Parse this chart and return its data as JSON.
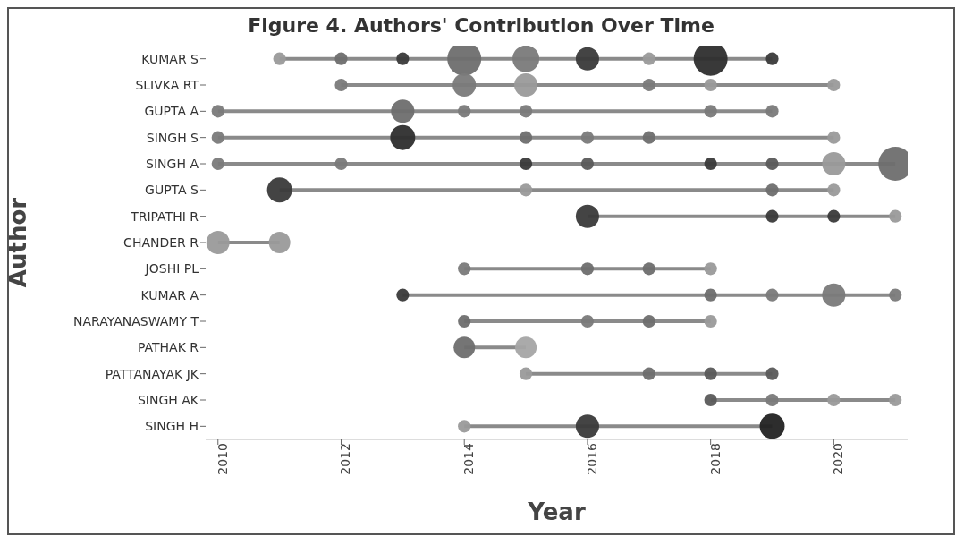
{
  "chart_data": {
    "type": "bubble",
    "title": "Figure 4. Authors' Contribution Over Time",
    "xlabel": "Year",
    "ylabel": "Author",
    "orientation": "horizontal",
    "categories": [
      "KUMAR S",
      "SLIVKA RT",
      "GUPTA A",
      "SINGH S",
      "SINGH A",
      "GUPTA S",
      "TRIPATHI R",
      "CHANDER R",
      "JOSHI PL",
      "KUMAR A",
      "NARAYANASWAMY T",
      "PATHAK R",
      "PATTANAYAK JK",
      "SINGH AK",
      "SINGH H"
    ],
    "xlim": [
      2009.8,
      2021.2
    ],
    "xticks": [
      2010,
      2012,
      2014,
      2016,
      2018,
      2020
    ],
    "legend": false,
    "series": [
      {
        "values": [
          null,
          null,
          2010,
          2010,
          2010,
          null,
          null,
          2010,
          null,
          null,
          null,
          null,
          null,
          null,
          null
        ],
        "sizes": [
          null,
          null,
          0.14,
          0.14,
          0.14,
          null,
          null,
          0.47,
          null,
          null,
          null,
          null,
          null,
          null,
          null
        ],
        "colors": [
          null,
          null,
          "#7a7a7a",
          "#7a7a7a",
          "#7a7a7a",
          null,
          null,
          "#9a9a9a",
          null,
          null,
          null,
          null,
          null,
          null,
          null
        ]
      },
      {
        "values": [
          2011,
          null,
          null,
          null,
          null,
          2011,
          null,
          2011,
          null,
          null,
          null,
          null,
          null,
          null,
          null
        ],
        "sizes": [
          0.14,
          null,
          null,
          null,
          null,
          0.54,
          null,
          0.4,
          null,
          null,
          null,
          null,
          null,
          null,
          null
        ],
        "colors": [
          "#9a9a9a",
          null,
          null,
          null,
          null,
          "#3a3a3a",
          null,
          "#9a9a9a",
          null,
          null,
          null,
          null,
          null,
          null,
          null
        ]
      },
      {
        "values": [
          2012,
          2012,
          null,
          null,
          2012,
          null,
          null,
          null,
          null,
          null,
          null,
          null,
          null,
          null,
          null
        ],
        "sizes": [
          0.14,
          0.14,
          null,
          null,
          0.14,
          null,
          null,
          null,
          null,
          null,
          null,
          null,
          null,
          null,
          null
        ],
        "colors": [
          "#6e6e6e",
          "#7a7a7a",
          null,
          null,
          "#7a7a7a",
          null,
          null,
          null,
          null,
          null,
          null,
          null,
          null,
          null,
          null
        ]
      },
      {
        "values": [
          2013,
          null,
          2013,
          2013,
          null,
          null,
          null,
          null,
          null,
          2013,
          null,
          null,
          null,
          null,
          null
        ],
        "sizes": [
          0.14,
          null,
          0.47,
          0.54,
          null,
          null,
          null,
          null,
          null,
          0.14,
          null,
          null,
          null,
          null,
          null
        ],
        "colors": [
          "#3a3a3a",
          null,
          "#6e6e6e",
          "#2e2e2e",
          null,
          null,
          null,
          null,
          null,
          "#3a3a3a",
          null,
          null,
          null,
          null,
          null
        ]
      },
      {
        "values": [
          2014,
          2014,
          2014,
          null,
          null,
          null,
          null,
          null,
          2014,
          null,
          2014,
          2014,
          null,
          null,
          2014
        ],
        "sizes": [
          1,
          0.47,
          0.14,
          null,
          null,
          null,
          null,
          null,
          0.14,
          null,
          0.14,
          0.4,
          null,
          null,
          0.14
        ],
        "colors": [
          "#6e6e6e",
          "#7a7a7a",
          "#7a7a7a",
          null,
          null,
          null,
          null,
          null,
          "#7a7a7a",
          null,
          "#6e6e6e",
          "#6e6e6e",
          null,
          null,
          "#9a9a9a"
        ]
      },
      {
        "values": [
          2015,
          2015,
          2015,
          2015,
          2015,
          2015,
          null,
          null,
          null,
          null,
          null,
          2015,
          2015,
          null,
          null
        ],
        "sizes": [
          0.62,
          0.47,
          0.14,
          0.14,
          0.14,
          0.14,
          null,
          null,
          null,
          null,
          null,
          0.4,
          0.14,
          null,
          null
        ],
        "colors": [
          "#7a7a7a",
          "#9a9a9a",
          "#7a7a7a",
          "#6e6e6e",
          "#3a3a3a",
          "#9a9a9a",
          null,
          null,
          null,
          null,
          null,
          "#a5a5a5",
          "#9a9a9a",
          null,
          null
        ]
      },
      {
        "values": [
          2016,
          null,
          null,
          2016,
          2016,
          null,
          2016,
          null,
          2016,
          null,
          2016,
          null,
          null,
          null,
          2016
        ],
        "sizes": [
          0.47,
          null,
          null,
          0.14,
          0.14,
          null,
          0.47,
          null,
          0.14,
          null,
          0.14,
          null,
          null,
          null,
          0.47
        ],
        "colors": [
          "#3a3a3a",
          null,
          null,
          "#7a7a7a",
          "#5a5a5a",
          null,
          "#3a3a3a",
          null,
          "#6e6e6e",
          null,
          "#7a7a7a",
          null,
          null,
          null,
          "#3a3a3a"
        ]
      },
      {
        "values": [
          2017,
          2017,
          null,
          2017,
          null,
          null,
          null,
          null,
          2017,
          null,
          2017,
          null,
          2017,
          null,
          null
        ],
        "sizes": [
          0.14,
          0.14,
          null,
          0.14,
          null,
          null,
          null,
          null,
          0.14,
          null,
          0.14,
          null,
          0.14,
          null,
          null
        ],
        "colors": [
          "#9a9a9a",
          "#7a7a7a",
          null,
          "#6e6e6e",
          null,
          null,
          null,
          null,
          "#6e6e6e",
          null,
          "#6e6e6e",
          null,
          "#6e6e6e",
          null,
          null
        ]
      },
      {
        "values": [
          2018,
          2018,
          2018,
          null,
          2018,
          null,
          null,
          null,
          2018,
          2018,
          2018,
          null,
          2018,
          2018,
          null
        ],
        "sizes": [
          1,
          0.14,
          0.14,
          null,
          0.14,
          null,
          null,
          null,
          0.14,
          0.14,
          0.14,
          null,
          0.14,
          0.14,
          null
        ],
        "colors": [
          "#2e2e2e",
          "#9a9a9a",
          "#7a7a7a",
          null,
          "#3a3a3a",
          null,
          null,
          null,
          "#9a9a9a",
          "#6e6e6e",
          "#9a9a9a",
          null,
          "#5a5a5a",
          "#5a5a5a",
          null
        ]
      },
      {
        "values": [
          2019,
          null,
          2019,
          null,
          2019,
          2019,
          2019,
          null,
          null,
          2019,
          null,
          null,
          2019,
          2019,
          2019
        ],
        "sizes": [
          0.14,
          null,
          0.14,
          null,
          0.14,
          0.14,
          0.14,
          null,
          null,
          0.14,
          null,
          null,
          0.14,
          0.14,
          0.54
        ],
        "colors": [
          "#3a3a3a",
          null,
          "#7a7a7a",
          null,
          "#5a5a5a",
          "#6e6e6e",
          "#3a3a3a",
          null,
          null,
          "#7a7a7a",
          null,
          null,
          "#5a5a5a",
          "#7a7a7a",
          "#222222"
        ]
      },
      {
        "values": [
          null,
          2020,
          null,
          2020,
          2020,
          2020,
          2020,
          null,
          null,
          2020,
          null,
          null,
          null,
          2020,
          null
        ],
        "sizes": [
          null,
          0.14,
          null,
          0.14,
          0.47,
          0.14,
          0.14,
          null,
          null,
          0.47,
          null,
          null,
          null,
          0.14,
          null
        ],
        "colors": [
          null,
          "#9a9a9a",
          null,
          "#9a9a9a",
          "#9a9a9a",
          "#9a9a9a",
          "#3a3a3a",
          null,
          null,
          "#7a7a7a",
          null,
          null,
          null,
          "#9a9a9a",
          null
        ]
      },
      {
        "values": [
          null,
          null,
          null,
          null,
          2021,
          null,
          2021,
          null,
          null,
          2021,
          null,
          null,
          null,
          2021,
          null
        ],
        "sizes": [
          null,
          null,
          null,
          null,
          1,
          null,
          0.14,
          null,
          null,
          0.14,
          null,
          null,
          null,
          0.14,
          null
        ],
        "colors": [
          null,
          null,
          null,
          null,
          "#6e6e6e",
          null,
          "#9a9a9a",
          null,
          null,
          "#7a7a7a",
          null,
          null,
          null,
          "#9a9a9a",
          null
        ]
      }
    ]
  }
}
